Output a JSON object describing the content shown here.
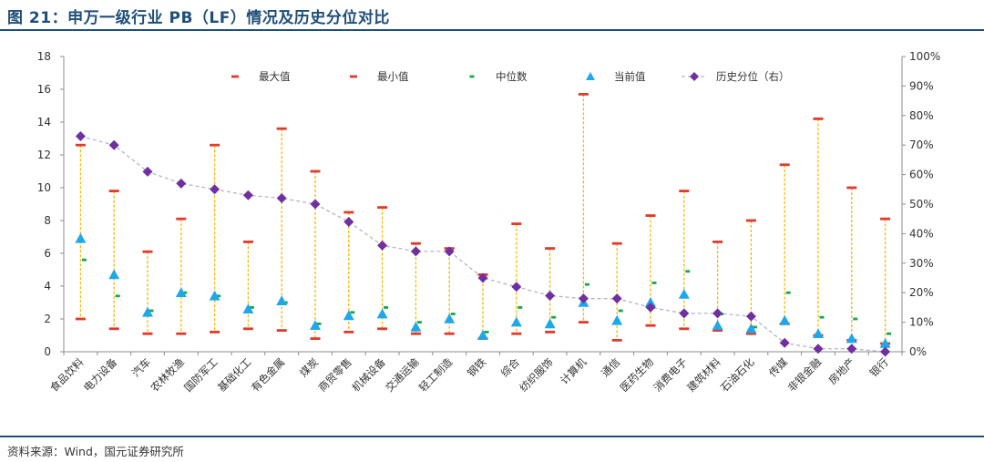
{
  "title": "图 21：申万一级行业 PB（LF）情况及历史分位对比",
  "source": "资料来源：Wind，国元证券研究所",
  "chart_data": {
    "type": "mixed",
    "categories": [
      "食品饮料",
      "电力设备",
      "汽车",
      "农林牧渔",
      "国防军工",
      "基础化工",
      "有色金属",
      "煤炭",
      "商贸零售",
      "机械设备",
      "交通运输",
      "轻工制造",
      "钢铁",
      "综合",
      "纺织服饰",
      "计算机",
      "通信",
      "医药生物",
      "消费电子",
      "建筑材料",
      "石油石化",
      "传媒",
      "非银金融",
      "房地产",
      "银行"
    ],
    "series": [
      {
        "name": "最大值",
        "axis": "left",
        "marker": "dash",
        "values": [
          12.6,
          9.8,
          6.1,
          8.1,
          12.6,
          6.7,
          13.6,
          11.0,
          8.5,
          8.8,
          6.6,
          6.3,
          4.7,
          7.8,
          6.3,
          15.7,
          6.6,
          8.3,
          9.8,
          6.7,
          8.0,
          11.4,
          14.2,
          10.0,
          8.1
        ],
        "color": "#e03a2d"
      },
      {
        "name": "最小值",
        "axis": "left",
        "marker": "dash",
        "values": [
          2.0,
          1.4,
          1.1,
          1.1,
          1.2,
          1.4,
          1.3,
          0.8,
          1.2,
          1.4,
          1.1,
          1.1,
          0.8,
          1.1,
          1.2,
          1.8,
          0.7,
          1.6,
          1.4,
          1.3,
          1.1,
          1.7,
          1.0,
          0.7,
          0.5
        ],
        "color": "#e03a2d"
      },
      {
        "name": "中位数",
        "axis": "left",
        "marker": "dash",
        "values": [
          5.6,
          3.4,
          2.5,
          3.6,
          3.4,
          2.7,
          3.0,
          1.7,
          2.4,
          2.7,
          1.8,
          2.3,
          1.2,
          2.7,
          2.1,
          4.1,
          2.5,
          4.2,
          4.9,
          2.3,
          1.5,
          3.6,
          2.1,
          2.0,
          1.1
        ],
        "color": "#1aa64b"
      },
      {
        "name": "当前值",
        "axis": "left",
        "marker": "triangle",
        "values": [
          6.9,
          4.7,
          2.4,
          3.6,
          3.4,
          2.6,
          3.1,
          1.6,
          2.2,
          2.3,
          1.5,
          2.0,
          1.0,
          1.8,
          1.7,
          3.0,
          1.9,
          3.0,
          3.5,
          1.6,
          1.4,
          1.9,
          1.1,
          0.8,
          0.5
        ],
        "color": "#1fa8e8"
      },
      {
        "name": "历史分位（右）",
        "axis": "right",
        "marker": "diamond",
        "values": [
          73,
          70,
          61,
          57,
          55,
          53,
          52,
          50,
          44,
          36,
          34,
          34,
          25,
          22,
          19,
          18,
          18,
          15,
          13,
          13,
          12,
          3,
          1,
          1,
          0
        ],
        "color": "#7030a0",
        "line_color": "#b4b4cc"
      }
    ],
    "y_left": {
      "ylim": [
        0,
        18
      ],
      "ticks": [
        "0",
        "2",
        "4",
        "6",
        "8",
        "10",
        "12",
        "14",
        "16",
        "18"
      ]
    },
    "y_right": {
      "ylim": [
        0,
        100
      ],
      "ticks": [
        "0%",
        "10%",
        "20%",
        "30%",
        "40%",
        "50%",
        "60%",
        "70%",
        "80%",
        "90%",
        "100%"
      ]
    },
    "range_line_color": "#f5b800",
    "legend_position": "top"
  }
}
